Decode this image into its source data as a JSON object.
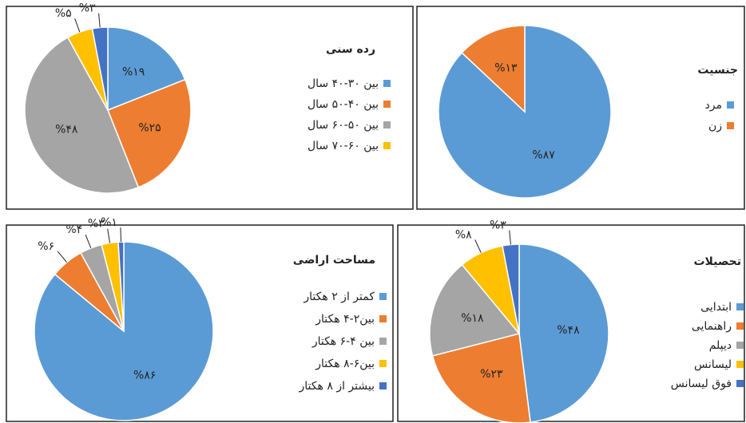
{
  "chart_data": [
    {
      "type": "pie",
      "title": "رده سنی",
      "categories": [
        "بین ۳۰-۴۰ سال",
        "بین ۴۰-۵۰ سال",
        "بین ۵۰-۶۰ سال",
        "بین ۶۰-۷۰ سال",
        null
      ],
      "values": [
        19,
        25,
        48,
        5,
        3
      ],
      "value_labels": [
        "%۱۹",
        "%۲۵",
        "%۴۸",
        "%۵",
        "%۳"
      ],
      "colors": [
        "#5b9bd5",
        "#ed7d31",
        "#a5a5a5",
        "#ffc000",
        "#4472c4"
      ]
    },
    {
      "type": "pie",
      "title": "جنسیت",
      "categories": [
        "مرد",
        "زن"
      ],
      "values": [
        87,
        13
      ],
      "value_labels": [
        "%۸۷",
        "%۱۳"
      ],
      "colors": [
        "#5b9bd5",
        "#ed7d31"
      ]
    },
    {
      "type": "pie",
      "title": "مساحت اراضی",
      "categories": [
        "کمتر از ۲ هکتار",
        "بین۲-۴ هکتار",
        "بین ۴-۶ هکتار",
        "بین۶-۸ هکتار",
        "بیشتر از ۸ هکتار"
      ],
      "values": [
        86,
        6,
        4,
        3,
        1
      ],
      "value_labels": [
        "%۸۶",
        "%۶",
        "%۴",
        "%۳",
        "%۱"
      ],
      "colors": [
        "#5b9bd5",
        "#ed7d31",
        "#a5a5a5",
        "#ffc000",
        "#4472c4"
      ]
    },
    {
      "type": "pie",
      "title": "تحصیلات",
      "categories": [
        "ابتدایی",
        "راهنمایی",
        "دیپلم",
        "لیسانس",
        "فوق لیسانس"
      ],
      "values": [
        48,
        23,
        18,
        8,
        3
      ],
      "value_labels": [
        "%۴۸",
        "%۲۳",
        "%۱۸",
        "%۸",
        "%۳"
      ],
      "colors": [
        "#5b9bd5",
        "#ed7d31",
        "#a5a5a5",
        "#ffc000",
        "#4472c4"
      ]
    }
  ]
}
